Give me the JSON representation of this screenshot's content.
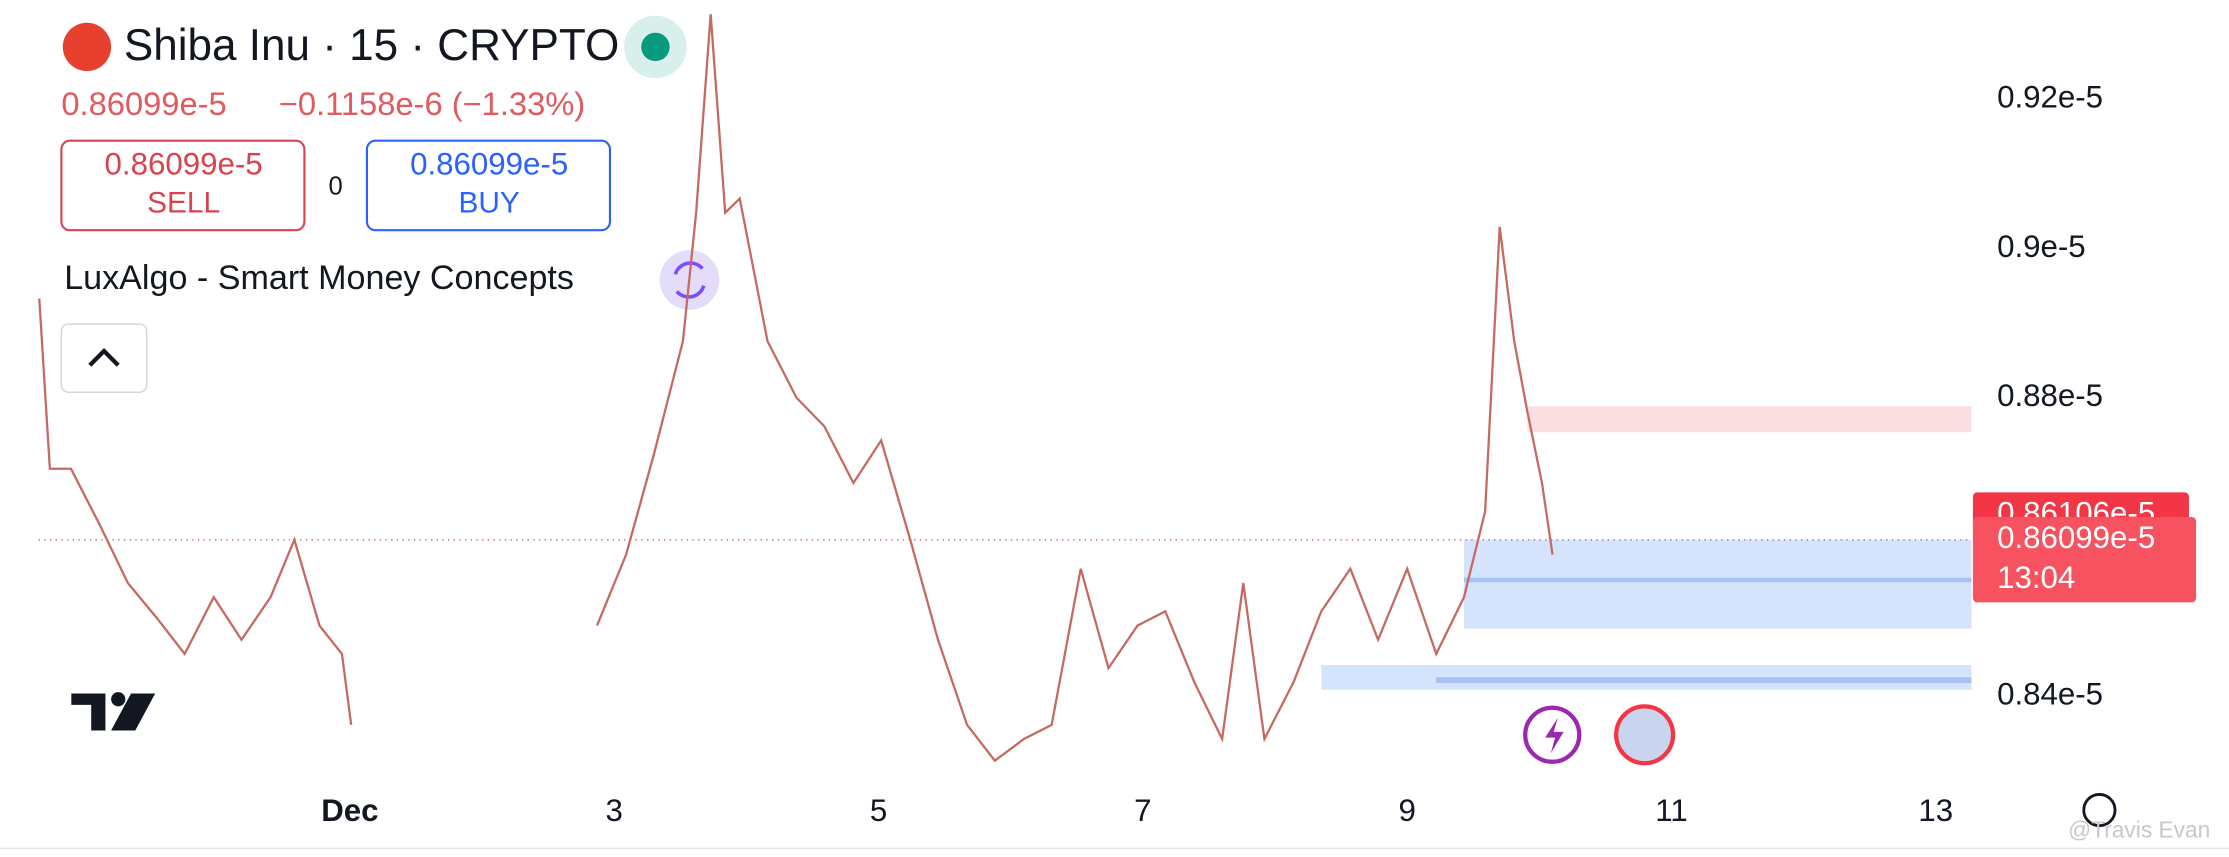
{
  "header": {
    "symbol": "Shiba Inu · 15 · CRYPTO",
    "price": "0.86099e-5",
    "change": "−0.1158e-6 (−1.33%)",
    "sell_price": "0.86099e-5",
    "sell": "SELL",
    "spread": "0",
    "buy_price": "0.86099e-5",
    "buy": "BUY",
    "indicator": "LuxAlgo - Smart Money Concepts",
    "watermark": "@Travis Evan"
  },
  "chart_data": {
    "type": "line",
    "color": "#c46a62",
    "x": [
      -1.35,
      -1.27,
      -1.11,
      -0.89,
      -0.68,
      -0.46,
      -0.25,
      -0.03,
      0.18,
      0.4,
      0.58,
      0.77,
      0.94,
      1.01,
      2.63,
      2.87,
      3.09,
      3.3,
      3.52,
      3.62,
      3.73,
      3.84,
      3.95,
      4.16,
      4.38,
      4.59,
      4.81,
      5.02,
      5.24,
      5.45,
      5.67,
      5.88,
      6.1,
      6.31,
      6.53,
      6.74,
      6.96,
      7.17,
      7.39,
      7.6,
      7.76,
      7.92,
      8.14,
      8.35,
      8.57,
      8.78,
      9.0,
      9.22,
      9.43,
      9.59,
      9.7,
      9.81,
      9.91,
      10.02,
      10.1
    ],
    "values": [
      8.933e-06,
      8.705e-06,
      8.705e-06,
      8.629e-06,
      8.552e-06,
      8.505e-06,
      8.457e-06,
      8.533e-06,
      8.476e-06,
      8.533e-06,
      8.61e-06,
      8.495e-06,
      8.457e-06,
      8.362e-06,
      null,
      8.495e-06,
      8.59e-06,
      8.724e-06,
      8.876e-06,
      9.048e-06,
      9.314e-06,
      9.048e-06,
      9.067e-06,
      8.876e-06,
      8.8e-06,
      8.762e-06,
      8.686e-06,
      8.743e-06,
      8.61e-06,
      8.476e-06,
      8.362e-06,
      8.314e-06,
      8.343e-06,
      8.362e-06,
      8.571e-06,
      8.438e-06,
      8.495e-06,
      8.514e-06,
      8.419e-06,
      8.343e-06,
      8.552e-06,
      8.343e-06,
      8.419e-06,
      8.514e-06,
      8.571e-06,
      8.476e-06,
      8.571e-06,
      8.457e-06,
      8.533e-06,
      8.648e-06,
      9.029e-06,
      8.876e-06,
      8.781e-06,
      8.686e-06,
      8.59e-06
    ],
    "xlim": [
      -1.355,
      13.27
    ],
    "ylim": [
      8.303e-06,
      9.333e-06
    ],
    "xticks": [
      {
        "value": 1,
        "label": "Dec"
      },
      3,
      5,
      7,
      9,
      11,
      13
    ],
    "yticks": [
      {
        "value": 8.4e-06,
        "label": "0.84e-5"
      },
      {
        "value": 8.8e-06,
        "label": "0.88e-5"
      },
      {
        "value": 9e-06,
        "label": "0.9e-5"
      },
      {
        "value": 9.2e-06,
        "label": "0.92e-5"
      }
    ],
    "zones": [
      {
        "x0": 9.91,
        "y0": 8.754e-06,
        "y1": 8.789e-06,
        "color": "#fcdfe2"
      },
      {
        "x0": 9.43,
        "y0": 8.491e-06,
        "y1": 8.61e-06,
        "color": "#d6e3fd"
      },
      {
        "x0": 9.43,
        "y0": 8.553e-06,
        "y1": 8.559e-06,
        "color": "#a9c2f2"
      },
      {
        "x0": 8.35,
        "y0": 8.409e-06,
        "y1": 8.442e-06,
        "color": "#d6e3fd"
      },
      {
        "x0": 9.22,
        "y0": 8.418e-06,
        "y1": 8.426e-06,
        "color": "#a9c2f2"
      }
    ],
    "price_markers": [
      {
        "value": 8.6106e-06,
        "label": "0.86106e-5",
        "color": "#f23645"
      },
      {
        "value": 8.6099e-06,
        "label": "0.86099e-5",
        "color": "#f7525f"
      }
    ],
    "countdown": "13:04"
  }
}
